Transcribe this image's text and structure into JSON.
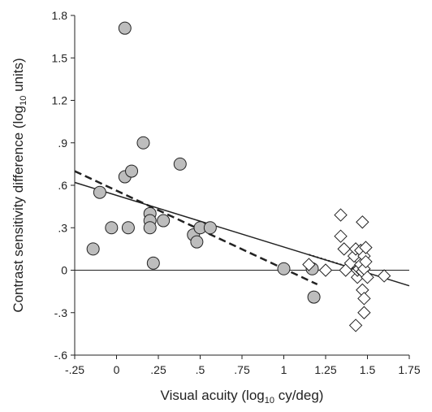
{
  "chart_data": {
    "type": "scatter",
    "title": "",
    "xlabel": {
      "pre": "Visual acuity (log",
      "sub": "10",
      "post": " cy/deg)"
    },
    "ylabel": {
      "pre": "Contrast sensitivity difference (log",
      "sub": "10",
      "post": " units)"
    },
    "xlim": [
      -0.25,
      1.75
    ],
    "ylim": [
      -0.6,
      1.8
    ],
    "x_ticks": [
      {
        "value": -0.25,
        "label": "-.25"
      },
      {
        "value": 0,
        "label": "0"
      },
      {
        "value": 0.25,
        "label": ".25"
      },
      {
        "value": 0.5,
        "label": ".5"
      },
      {
        "value": 0.75,
        "label": ".75"
      },
      {
        "value": 1,
        "label": "1"
      },
      {
        "value": 1.25,
        "label": "1.25"
      },
      {
        "value": 1.5,
        "label": "1.5"
      },
      {
        "value": 1.75,
        "label": "1.75"
      }
    ],
    "y_ticks": [
      {
        "value": -0.6,
        "label": "-.6"
      },
      {
        "value": -0.3,
        "label": "-.3"
      },
      {
        "value": 0,
        "label": "0"
      },
      {
        "value": 0.3,
        "label": ".3"
      },
      {
        "value": 0.6,
        "label": ".6"
      },
      {
        "value": 0.9,
        "label": ".9"
      },
      {
        "value": 1.2,
        "label": "1.2"
      },
      {
        "value": 1.5,
        "label": "1.5"
      },
      {
        "value": 1.8,
        "label": "1.8"
      }
    ],
    "colors": {
      "circle_fill": "#bdbdbd",
      "stroke": "#222222",
      "diamond_fill": "#ffffff"
    },
    "series": [
      {
        "marker": "circle",
        "points": [
          [
            -0.14,
            0.15
          ],
          [
            -0.1,
            0.55
          ],
          [
            -0.03,
            0.3
          ],
          [
            0.05,
            1.71
          ],
          [
            0.05,
            0.66
          ],
          [
            0.07,
            0.3
          ],
          [
            0.09,
            0.7
          ],
          [
            0.16,
            0.9
          ],
          [
            0.2,
            0.4
          ],
          [
            0.2,
            0.35
          ],
          [
            0.2,
            0.3
          ],
          [
            0.22,
            0.05
          ],
          [
            0.28,
            0.35
          ],
          [
            0.38,
            0.75
          ],
          [
            0.46,
            0.25
          ],
          [
            0.48,
            0.2
          ],
          [
            0.5,
            0.3
          ],
          [
            0.56,
            0.3
          ],
          [
            1.0,
            0.01
          ],
          [
            1.17,
            0.01
          ],
          [
            1.18,
            -0.19
          ]
        ]
      },
      {
        "marker": "diamond",
        "points": [
          [
            1.15,
            0.04
          ],
          [
            1.25,
            0.0
          ],
          [
            1.34,
            0.39
          ],
          [
            1.34,
            0.24
          ],
          [
            1.36,
            0.15
          ],
          [
            1.37,
            0.0
          ],
          [
            1.4,
            0.05
          ],
          [
            1.42,
            0.1
          ],
          [
            1.43,
            0.15
          ],
          [
            1.44,
            -0.05
          ],
          [
            1.43,
            -0.39
          ],
          [
            1.44,
            0.0
          ],
          [
            1.45,
            0.01
          ],
          [
            1.46,
            0.14
          ],
          [
            1.46,
            0.04
          ],
          [
            1.47,
            -0.01
          ],
          [
            1.47,
            -0.14
          ],
          [
            1.47,
            0.34
          ],
          [
            1.48,
            0.1
          ],
          [
            1.48,
            0.01
          ],
          [
            1.48,
            -0.2
          ],
          [
            1.48,
            -0.3
          ],
          [
            1.49,
            0.16
          ],
          [
            1.49,
            0.06
          ],
          [
            1.5,
            -0.05
          ],
          [
            1.6,
            -0.04
          ]
        ]
      }
    ],
    "lines": [
      {
        "style": "solid",
        "width": 1,
        "from": [
          -0.25,
          0.0
        ],
        "to": [
          1.75,
          0.0
        ]
      },
      {
        "style": "solid",
        "width": 1.5,
        "from": [
          -0.25,
          0.62
        ],
        "to": [
          1.75,
          -0.11
        ]
      },
      {
        "style": "dashed",
        "width": 2.5,
        "from": [
          -0.25,
          0.7
        ],
        "to": [
          1.2,
          -0.1
        ]
      },
      {
        "style": "dotted",
        "width": 2,
        "from": [
          1.15,
          0.11
        ],
        "to": [
          1.45,
          0.0
        ]
      }
    ]
  }
}
